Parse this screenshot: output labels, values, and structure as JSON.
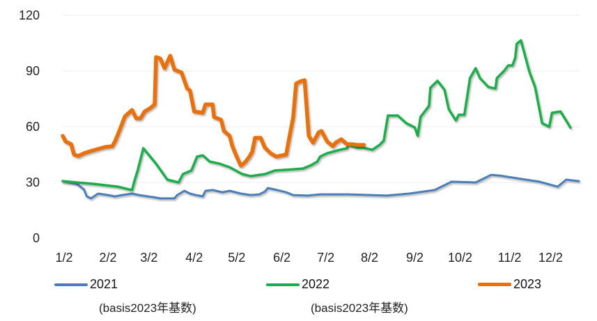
{
  "chart_data": {
    "type": "line",
    "title": "",
    "xlabel": "",
    "ylabel": "",
    "x_unit": "days since 1/2",
    "xlim": [
      0,
      365
    ],
    "ylim": [
      0,
      120
    ],
    "yticks": [
      "0",
      "30",
      "60",
      "90",
      "120"
    ],
    "ytick_values": [
      0,
      30,
      60,
      90,
      120
    ],
    "xticks": [
      "1/2",
      "2/2",
      "3/2",
      "4/2",
      "5/2",
      "6/2",
      "7/2",
      "8/2",
      "9/2",
      "10/2",
      "11/2",
      "12/2"
    ],
    "xtick_values": [
      1,
      32,
      61,
      93,
      123,
      155,
      186,
      217,
      249,
      281,
      316,
      345
    ],
    "grid": true,
    "legend_position": "bottom",
    "series": [
      {
        "name": "2021",
        "note": "(basis2023年基数)",
        "color": "#4a7ebb",
        "x": [
          0,
          10,
          15,
          17,
          20,
          25,
          32,
          37,
          42,
          49,
          54,
          64,
          69,
          79,
          81,
          86,
          90,
          94,
          99,
          101,
          106,
          113,
          118,
          126,
          133,
          139,
          143,
          145,
          150,
          158,
          163,
          173,
          182,
          202,
          229,
          245,
          263,
          275,
          292,
          303,
          309,
          324,
          337,
          350,
          356,
          365
        ],
        "y": [
          30.7,
          29.2,
          26.2,
          22.5,
          21.4,
          24.0,
          23.2,
          22.5,
          23.2,
          24.0,
          23.2,
          22.1,
          21.4,
          21.4,
          23.2,
          25.5,
          24.0,
          23.2,
          22.5,
          25.5,
          25.9,
          24.7,
          25.5,
          24.0,
          23.2,
          23.6,
          25.1,
          27.0,
          26.2,
          24.7,
          23.2,
          22.9,
          23.6,
          23.6,
          22.9,
          24.0,
          25.9,
          30.4,
          30.0,
          34.1,
          33.7,
          31.9,
          30.4,
          27.7,
          31.5,
          30.7
        ]
      },
      {
        "name": "2022",
        "note": "(basis2023年基数)",
        "color": "#1aad4b",
        "x": [
          0,
          10,
          22,
          30,
          39,
          47,
          49,
          51,
          53,
          57,
          66,
          74,
          82,
          85,
          91,
          95,
          99,
          104,
          111,
          118,
          127,
          133,
          143,
          150,
          163,
          170,
          176,
          180,
          182,
          187,
          196,
          201,
          202,
          208,
          212,
          219,
          224,
          227,
          230,
          237,
          243,
          249,
          251,
          253,
          259,
          260,
          265,
          270,
          273,
          278,
          280,
          284,
          288,
          292,
          295,
          301,
          306,
          307,
          312,
          315,
          318,
          320,
          321,
          324,
          330,
          334,
          339,
          344,
          346,
          352,
          359
        ],
        "y": [
          30.7,
          30.0,
          29.2,
          28.5,
          27.7,
          26.2,
          25.9,
          31.5,
          36.4,
          48.4,
          40.1,
          31.5,
          30.0,
          34.5,
          36.4,
          43.9,
          44.6,
          41.2,
          40.1,
          38.2,
          34.5,
          33.4,
          34.5,
          36.4,
          37.1,
          37.5,
          39.4,
          41.2,
          43.9,
          45.7,
          47.6,
          48.4,
          50.2,
          48.7,
          48.7,
          47.6,
          50.2,
          52.5,
          66.0,
          66.0,
          61.9,
          59.6,
          55.1,
          65.2,
          71.2,
          81.0,
          84.7,
          79.9,
          69.4,
          63.4,
          66.4,
          66.4,
          86.2,
          91.5,
          86.2,
          81.4,
          80.6,
          86.2,
          90.0,
          93.0,
          93.0,
          97.1,
          104.6,
          106.5,
          89.6,
          81.4,
          61.9,
          60.0,
          67.5,
          68.2,
          59.6
        ]
      },
      {
        "name": "2023",
        "color": "#e8700e",
        "x": [
          0,
          2,
          6,
          8,
          11,
          15,
          20,
          25,
          30,
          35,
          37,
          40,
          44,
          49,
          52,
          55,
          58,
          62,
          65,
          66,
          69,
          72,
          76,
          79,
          84,
          88,
          90,
          93,
          99,
          101,
          106,
          107,
          112,
          114,
          118,
          120,
          123,
          126,
          129,
          132,
          134,
          136,
          140,
          143,
          147,
          151,
          158,
          160,
          163,
          165,
          168,
          171,
          174,
          177,
          181,
          183,
          187,
          191,
          193,
          197,
          201,
          205,
          208,
          213
        ],
        "y": [
          55.1,
          52.1,
          50.6,
          45.0,
          44.2,
          45.7,
          46.9,
          48.0,
          49.1,
          49.5,
          52.1,
          57.7,
          65.6,
          69.0,
          64.5,
          64.5,
          68.2,
          70.1,
          72.0,
          97.5,
          96.7,
          91.5,
          98.2,
          90.7,
          89.2,
          80.6,
          79.5,
          68.2,
          67.5,
          72.0,
          72.0,
          65.2,
          63.7,
          57.7,
          55.1,
          49.5,
          43.9,
          39.0,
          40.9,
          43.9,
          46.5,
          54.0,
          54.0,
          48.7,
          45.7,
          43.9,
          45.0,
          53.2,
          65.2,
          83.2,
          84.4,
          85.1,
          55.1,
          51.4,
          57.0,
          57.7,
          52.1,
          49.5,
          51.4,
          53.2,
          50.6,
          50.6,
          50.2,
          50.2
        ]
      }
    ]
  }
}
